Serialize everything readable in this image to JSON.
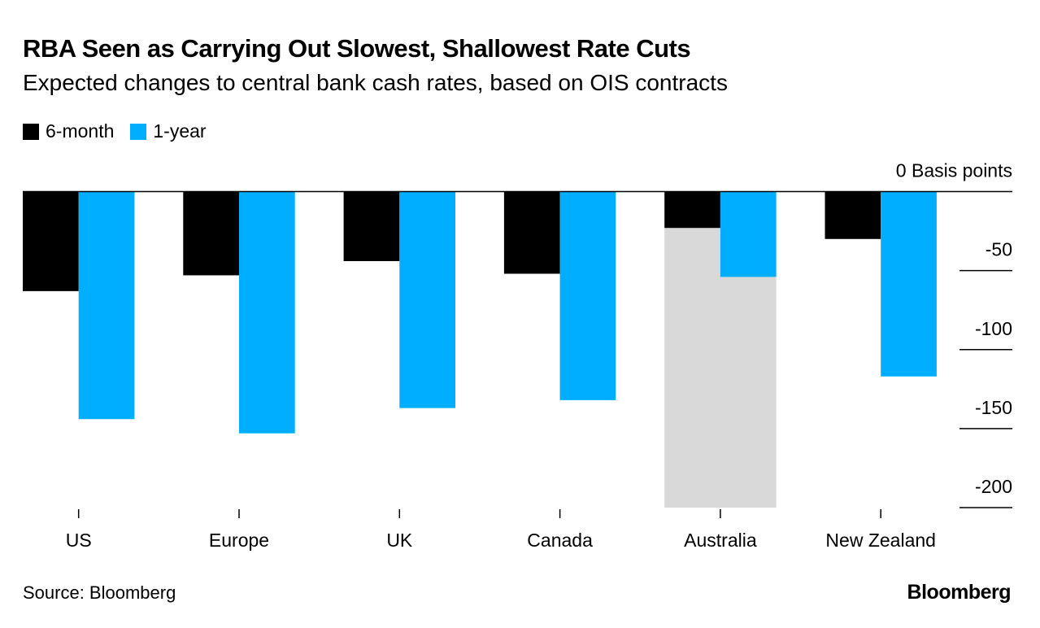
{
  "title": "RBA Seen as Carrying Out Slowest, Shallowest Rate Cuts",
  "subtitle": "Expected changes to central bank cash rates, based on OIS contracts",
  "source": "Source: Bloomberg",
  "logo": "Bloomberg",
  "colors": {
    "six_month": "#000000",
    "one_year": "#00aeff",
    "highlight": "#d9d9d9"
  },
  "chart_data": {
    "type": "bar",
    "title": "RBA Seen as Carrying Out Slowest, Shallowest Rate Cuts",
    "subtitle": "Expected changes to central bank cash rates, based on OIS contracts",
    "categories": [
      "US",
      "Europe",
      "UK",
      "Canada",
      "Australia",
      "New Zealand"
    ],
    "series": [
      {
        "name": "6-month",
        "values": [
          -63,
          -53,
          -44,
          -52,
          -23,
          -30
        ]
      },
      {
        "name": "1-year",
        "values": [
          -144,
          -153,
          -137,
          -132,
          -54,
          -117
        ]
      }
    ],
    "highlight_category": "Australia",
    "yunit": "Basis points",
    "yticks": [
      0,
      -50,
      -100,
      -150,
      -200
    ],
    "ytick_labels": [
      "0 Basis points",
      "-50",
      "-100",
      "-150",
      "-200"
    ],
    "ylim": [
      -200,
      0
    ],
    "legend": "top-left",
    "grid": false
  }
}
